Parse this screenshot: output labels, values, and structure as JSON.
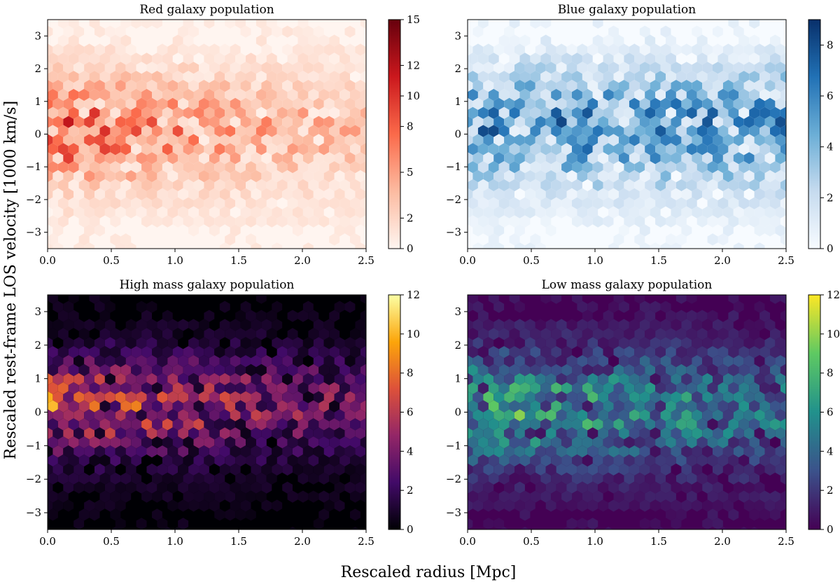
{
  "figure": {
    "ylabel": "Rescaled rest-frame LOS velocity [1000 km/s]",
    "xlabel": "Rescaled radius [Mpc]"
  },
  "chart_data": [
    {
      "type": "heatmap",
      "title": "Red galaxy population",
      "colormap": "Reds",
      "colors": [
        "#fff5f0",
        "#fcbba1",
        "#fb6a4a",
        "#cb181d",
        "#67000d"
      ],
      "xlim": [
        0.0,
        2.5
      ],
      "ylim": [
        -3.5,
        3.5
      ],
      "xticks": [
        "0.0",
        "0.5",
        "1.0",
        "1.5",
        "2.0",
        "2.5"
      ],
      "yticks": [
        "−3",
        "−2",
        "−1",
        "0",
        "1",
        "2",
        "3"
      ],
      "colorbar_range": [
        0,
        15
      ],
      "colorbar_ticks": [
        "0",
        "2",
        "5",
        "8",
        "10",
        "12",
        "15"
      ],
      "density": {
        "y_center": 0.1,
        "y_sigma": 1.05,
        "x_decay": 0.45,
        "peak": 15,
        "baseline": 0.8
      }
    },
    {
      "type": "heatmap",
      "title": "Blue galaxy population",
      "colormap": "Blues",
      "colors": [
        "#f7fbff",
        "#c6dbef",
        "#6baed6",
        "#2171b5",
        "#08306b"
      ],
      "xlim": [
        0.0,
        2.5
      ],
      "ylim": [
        -3.5,
        3.5
      ],
      "xticks": [
        "0.0",
        "0.5",
        "1.0",
        "1.5",
        "2.0",
        "2.5"
      ],
      "yticks": [
        "−3",
        "−2",
        "−1",
        "0",
        "1",
        "2",
        "3"
      ],
      "colorbar_range": [
        0,
        9
      ],
      "colorbar_ticks": [
        "0",
        "2",
        "4",
        "6",
        "8"
      ],
      "density": {
        "y_center": 0.2,
        "y_sigma": 1.2,
        "x_decay": 0.0,
        "peak": 9,
        "baseline": 0.6
      }
    },
    {
      "type": "heatmap",
      "title": "High mass galaxy population",
      "colormap": "inferno",
      "colors": [
        "#000004",
        "#420a68",
        "#932667",
        "#dd513a",
        "#fca50a",
        "#fcffa4"
      ],
      "xlim": [
        0.0,
        2.5
      ],
      "ylim": [
        -3.5,
        3.5
      ],
      "xticks": [
        "0.0",
        "0.5",
        "1.0",
        "1.5",
        "2.0",
        "2.5"
      ],
      "yticks": [
        "−3",
        "−2",
        "−1",
        "0",
        "1",
        "2",
        "3"
      ],
      "colorbar_range": [
        0,
        12
      ],
      "colorbar_ticks": [
        "0",
        "2",
        "4",
        "6",
        "8",
        "10",
        "12"
      ],
      "density": {
        "y_center": 0.2,
        "y_sigma": 1.0,
        "x_decay": 0.3,
        "peak": 12,
        "baseline": 0.5
      }
    },
    {
      "type": "heatmap",
      "title": "Low mass galaxy population",
      "colormap": "viridis",
      "colors": [
        "#440154",
        "#3b528b",
        "#21918c",
        "#5ec962",
        "#fde725"
      ],
      "xlim": [
        0.0,
        2.5
      ],
      "ylim": [
        -3.5,
        3.5
      ],
      "xticks": [
        "0.0",
        "0.5",
        "1.0",
        "1.5",
        "2.0",
        "2.5"
      ],
      "yticks": [
        "−3",
        "−2",
        "−1",
        "0",
        "1",
        "2",
        "3"
      ],
      "colorbar_range": [
        0,
        12
      ],
      "colorbar_ticks": [
        "0",
        "2",
        "4",
        "6",
        "8",
        "10",
        "12"
      ],
      "density": {
        "y_center": 0.1,
        "y_sigma": 1.1,
        "x_decay": 0.2,
        "peak": 12,
        "baseline": 0.6
      }
    }
  ]
}
